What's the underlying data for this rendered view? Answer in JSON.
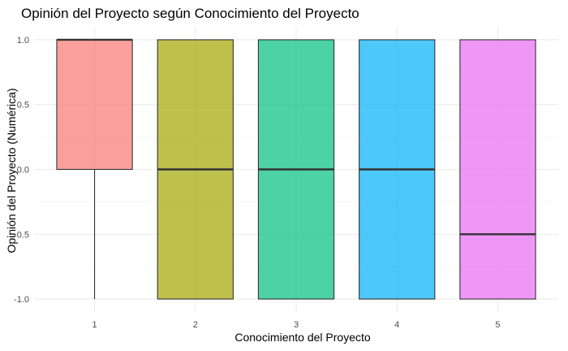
{
  "chart_data": {
    "type": "boxplot",
    "title": "Opinión del Proyecto según Conocimiento del Proyecto",
    "xlabel": "Conocimiento del Proyecto",
    "ylabel": "Opinión del Proyecto (Numérica)",
    "categories": [
      "1",
      "2",
      "3",
      "4",
      "5"
    ],
    "ylim": [
      -1,
      1
    ],
    "yticks": [
      -1.0,
      -0.5,
      0.0,
      0.5,
      1.0
    ],
    "ytick_labels": [
      "-1.0",
      "-0.5",
      "0.0",
      "0.5",
      "1.0"
    ],
    "grid": true,
    "legend": "none",
    "boxes": [
      {
        "category": "1",
        "min": -1.0,
        "q1": 0.0,
        "median": 1.0,
        "q3": 1.0,
        "max": 1.0,
        "color": "#F8766D"
      },
      {
        "category": "2",
        "min": -1.0,
        "q1": -1.0,
        "median": 0.0,
        "q3": 1.0,
        "max": 1.0,
        "color": "#A3A500"
      },
      {
        "category": "3",
        "min": -1.0,
        "q1": -1.0,
        "median": 0.0,
        "q3": 1.0,
        "max": 1.0,
        "color": "#00BF7D"
      },
      {
        "category": "4",
        "min": -1.0,
        "q1": -1.0,
        "median": 0.0,
        "q3": 1.0,
        "max": 1.0,
        "color": "#00B0F6"
      },
      {
        "category": "5",
        "min": -1.0,
        "q1": -1.0,
        "median": -0.5,
        "q3": 1.0,
        "max": 1.0,
        "color": "#E76BF3"
      }
    ]
  }
}
